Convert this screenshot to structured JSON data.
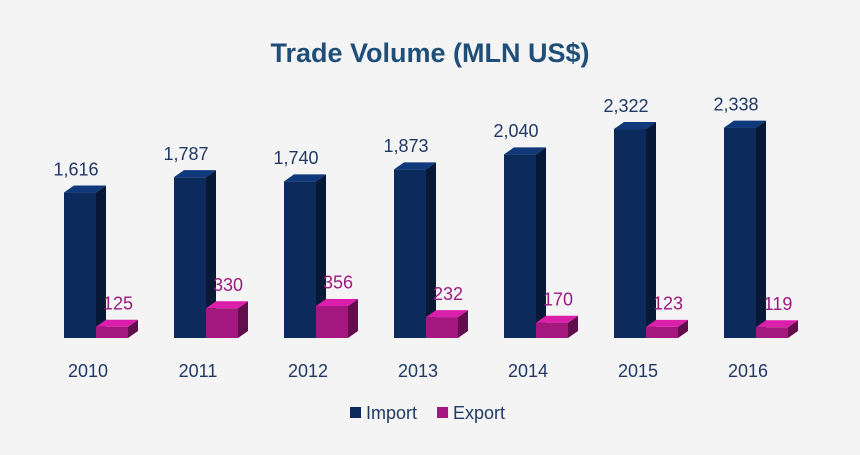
{
  "chart_data": {
    "type": "bar3d",
    "title": "Trade Volume (MLN US$)",
    "categories": [
      "2010",
      "2011",
      "2012",
      "2013",
      "2014",
      "2015",
      "2016"
    ],
    "series": [
      {
        "name": "Import",
        "color": "#0c2a5c",
        "values": [
          1616,
          1787,
          1740,
          1873,
          2040,
          2322,
          2338
        ],
        "value_labels": [
          "1,616",
          "1,787",
          "1,740",
          "1,873",
          "2,040",
          "2,322",
          "2,338"
        ]
      },
      {
        "name": "Export",
        "color": "#a3177f",
        "values": [
          125,
          330,
          356,
          232,
          170,
          123,
          119
        ]
      }
    ],
    "ylim": [
      0,
      2500
    ]
  }
}
